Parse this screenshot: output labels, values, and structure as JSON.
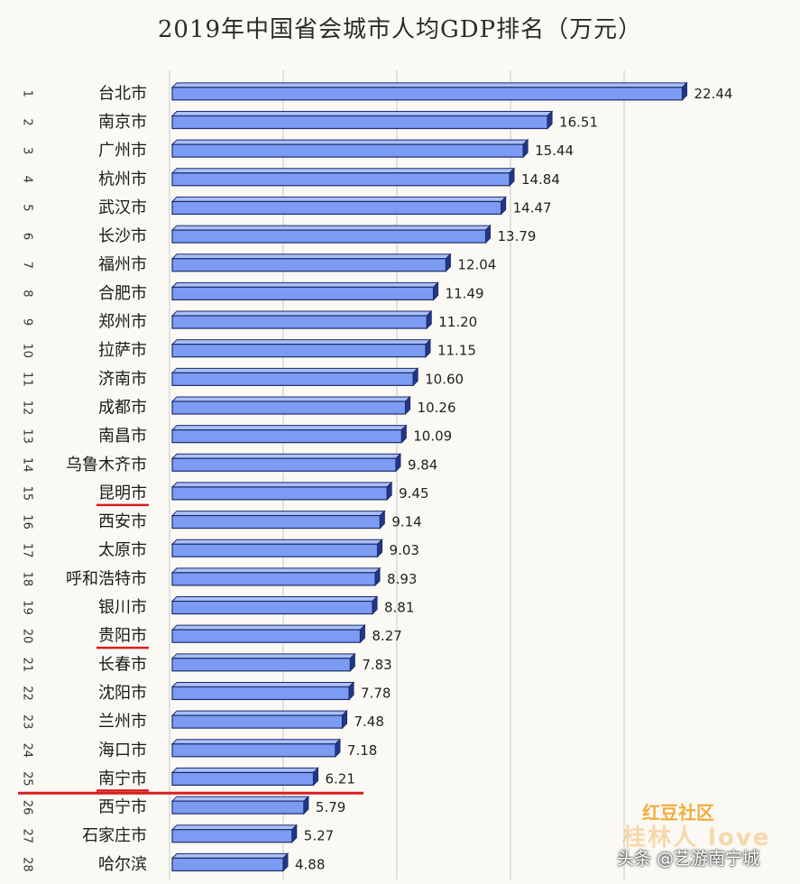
{
  "chart_data": {
    "type": "bar",
    "orientation": "horizontal",
    "title": "2019年中国省会城市人均GDP排名（万元）",
    "ranks": [
      "1",
      "2",
      "3",
      "4",
      "5",
      "6",
      "7",
      "8",
      "9",
      "10",
      "11",
      "12",
      "13",
      "14",
      "15",
      "16",
      "17",
      "18",
      "19",
      "20",
      "21",
      "22",
      "23",
      "24",
      "25",
      "26",
      "27",
      "28"
    ],
    "categories": [
      "台北市",
      "南京市",
      "广州市",
      "杭州市",
      "武汉市",
      "长沙市",
      "福州市",
      "合肥市",
      "郑州市",
      "拉萨市",
      "济南市",
      "成都市",
      "南昌市",
      "乌鲁木齐市",
      "昆明市",
      "西安市",
      "太原市",
      "呼和浩特市",
      "银川市",
      "贵阳市",
      "长春市",
      "沈阳市",
      "兰州市",
      "海口市",
      "南宁市",
      "西宁市",
      "石家庄市",
      "哈尔滨"
    ],
    "values": [
      22.44,
      16.51,
      15.44,
      14.84,
      14.47,
      13.79,
      12.04,
      11.49,
      11.2,
      11.15,
      10.6,
      10.26,
      10.09,
      9.84,
      9.45,
      9.14,
      9.03,
      8.93,
      8.81,
      8.27,
      7.83,
      7.78,
      7.48,
      7.18,
      6.21,
      5.79,
      5.27,
      4.88
    ],
    "value_labels": [
      "22.44",
      "16.51",
      "15.44",
      "14.84",
      "14.47",
      "13.79",
      "12.04",
      "11.49",
      "11.20",
      "11.15",
      "10.60",
      "10.26",
      "10.09",
      "9.84",
      "9.45",
      "9.14",
      "9.03",
      "8.93",
      "8.81",
      "8.27",
      "7.83",
      "7.78",
      "7.48",
      "7.18",
      "6.21",
      "5.79",
      "5.27",
      "4.88"
    ],
    "xlim": [
      0,
      24
    ],
    "grid": true,
    "bar_color": "#7b9cf2",
    "bar_edge_color": "#1c2b6e",
    "underlined_categories": [
      "昆明市",
      "贵阳市",
      "南宁市"
    ],
    "highlight_color": "#d81e1e"
  },
  "watermark": {
    "site_name": "红豆社区",
    "site_logo_text": "桂林人 love",
    "credit": "头条 @艺游南宁城"
  }
}
